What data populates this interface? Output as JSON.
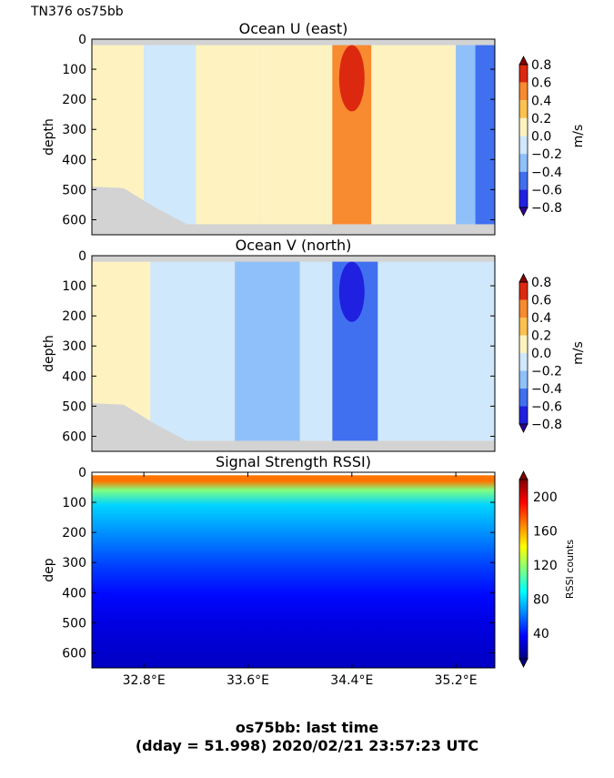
{
  "header": {
    "label": "TN376 os75bb"
  },
  "caption": {
    "line1": "os75bb: last time",
    "line2": "(dday = 51.998) 2020/02/21 23:57:23 UTC"
  },
  "colors": {
    "no_data": "#d3d3d3",
    "velocity_levels": [
      "#320096",
      "#2020e0",
      "#4070f0",
      "#90c0fa",
      "#d0e8fc",
      "#fef3c0",
      "#fdc150",
      "#f88a30",
      "#dd2810",
      "#8b0000"
    ],
    "rssi_scale": [
      "#000080",
      "#0000ff",
      "#0080ff",
      "#00ffff",
      "#80ff80",
      "#ffff00",
      "#ff8000",
      "#ff0000",
      "#800000"
    ]
  },
  "chart_data": [
    {
      "type": "heatmap",
      "title": "Ocean U (east)",
      "xlabel": "",
      "ylabel": "depth",
      "x_range_deg_east": [
        32.4,
        35.5
      ],
      "ylim": [
        650,
        0
      ],
      "yticks": [
        "0",
        "100",
        "200",
        "300",
        "400",
        "500",
        "600"
      ],
      "xticks": [],
      "colorbar": {
        "label": "m/s",
        "range": [
          -0.8,
          0.8
        ],
        "ticks": [
          "0.8",
          "0.6",
          "0.4",
          "0.2",
          "0.0",
          "−0.2",
          "−0.4",
          "−0.6",
          "−0.8"
        ]
      },
      "bands": [
        {
          "lon": [
            32.4,
            32.8
          ],
          "value": 0.05
        },
        {
          "lon": [
            32.8,
            33.2
          ],
          "value": -0.05
        },
        {
          "lon": [
            33.2,
            33.7
          ],
          "value": 0.05
        },
        {
          "lon": [
            33.7,
            34.0
          ],
          "value": 0.15
        },
        {
          "lon": [
            34.0,
            34.25
          ],
          "value": 0.1
        },
        {
          "lon": [
            34.25,
            34.55
          ],
          "value": 0.45
        },
        {
          "lon": [
            34.55,
            34.75
          ],
          "value": 0.15
        },
        {
          "lon": [
            34.75,
            35.0
          ],
          "value": 0.05
        },
        {
          "lon": [
            35.0,
            35.2
          ],
          "value": 0.0
        },
        {
          "lon": [
            35.2,
            35.35
          ],
          "value": -0.25
        },
        {
          "lon": [
            35.35,
            35.5
          ],
          "value": -0.45
        }
      ],
      "features": [
        {
          "name": "core-max",
          "lon": 34.4,
          "depth_range": [
            20,
            240
          ],
          "value": 0.75
        }
      ]
    },
    {
      "type": "heatmap",
      "title": "Ocean V (north)",
      "xlabel": "",
      "ylabel": "depth",
      "x_range_deg_east": [
        32.4,
        35.5
      ],
      "ylim": [
        650,
        0
      ],
      "yticks": [
        "0",
        "100",
        "200",
        "300",
        "400",
        "500",
        "600"
      ],
      "xticks": [],
      "colorbar": {
        "label": "m/s",
        "range": [
          -0.8,
          0.8
        ],
        "ticks": [
          "0.8",
          "0.6",
          "0.4",
          "0.2",
          "0.0",
          "−0.2",
          "−0.4",
          "−0.6",
          "−0.8"
        ]
      },
      "bands": [
        {
          "lon": [
            32.4,
            32.85
          ],
          "value": 0.05
        },
        {
          "lon": [
            32.85,
            33.5
          ],
          "value": -0.05
        },
        {
          "lon": [
            33.5,
            34.0
          ],
          "value": -0.25
        },
        {
          "lon": [
            34.0,
            34.25
          ],
          "value": -0.15
        },
        {
          "lon": [
            34.25,
            34.6
          ],
          "value": -0.45
        },
        {
          "lon": [
            34.6,
            35.1
          ],
          "value": -0.2
        },
        {
          "lon": [
            35.1,
            35.5
          ],
          "value": -0.05
        }
      ],
      "features": [
        {
          "name": "core-min",
          "lon": 34.4,
          "depth_range": [
            20,
            220
          ],
          "value": -0.75
        }
      ]
    },
    {
      "type": "heatmap",
      "title": "Signal Strength RSSI)",
      "xlabel": "",
      "ylabel": "dep",
      "x_range_deg_east": [
        32.4,
        35.5
      ],
      "ylim": [
        650,
        0
      ],
      "yticks": [
        "0",
        "100",
        "200",
        "300",
        "400",
        "500",
        "600"
      ],
      "xticks": [
        "32.8°E",
        "33.6°E",
        "34.4°E",
        "35.2°E"
      ],
      "xtick_values": [
        32.8,
        33.6,
        34.4,
        35.2
      ],
      "colorbar": {
        "label": "RSSI counts",
        "range": [
          10,
          220
        ],
        "ticks": [
          "200",
          "160",
          "120",
          "80",
          "40"
        ],
        "tick_values": [
          200,
          160,
          120,
          80,
          40
        ]
      },
      "depth_profile": [
        {
          "depth": 20,
          "rssi": 170
        },
        {
          "depth": 50,
          "rssi": 115
        },
        {
          "depth": 100,
          "rssi": 80
        },
        {
          "depth": 200,
          "rssi": 65
        },
        {
          "depth": 300,
          "rssi": 50
        },
        {
          "depth": 400,
          "rssi": 38
        },
        {
          "depth": 500,
          "rssi": 30
        },
        {
          "depth": 600,
          "rssi": 26
        },
        {
          "depth": 650,
          "rssi": 24
        }
      ]
    }
  ]
}
